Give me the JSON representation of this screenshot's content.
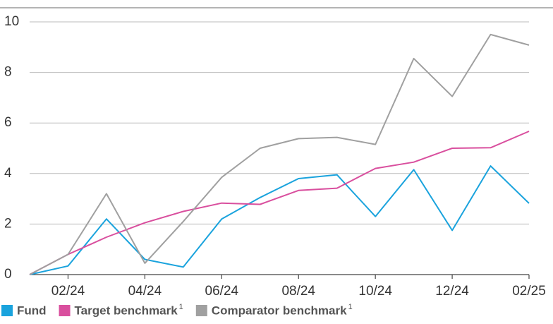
{
  "chart_data": {
    "type": "line",
    "categories": [
      null,
      "02/24",
      null,
      "04/24",
      null,
      "06/24",
      null,
      "08/24",
      null,
      "10/24",
      null,
      "12/24",
      null,
      "02/25"
    ],
    "series": [
      {
        "name": "Fund",
        "color": "#1aa3dd",
        "values": [
          0,
          0.34,
          2.2,
          0.6,
          0.3,
          2.2,
          3.05,
          3.8,
          3.95,
          2.3,
          4.15,
          1.75,
          4.3,
          2.82
        ]
      },
      {
        "name": "Target benchmark",
        "footnote": "1",
        "color": "#d94f9e",
        "values": [
          0,
          0.8,
          1.48,
          2.05,
          2.5,
          2.83,
          2.78,
          3.33,
          3.42,
          4.2,
          4.45,
          5.0,
          5.02,
          5.67
        ]
      },
      {
        "name": "Comparator benchmark",
        "footnote": "1",
        "color": "#a0a0a0",
        "values": [
          0,
          0.8,
          3.2,
          0.45,
          2.1,
          3.85,
          5.0,
          5.38,
          5.43,
          5.15,
          8.55,
          7.05,
          9.5,
          9.08
        ]
      }
    ],
    "ylim": [
      0,
      10
    ],
    "yticks": [
      0,
      2,
      4,
      6,
      8,
      10
    ],
    "grid": true
  }
}
